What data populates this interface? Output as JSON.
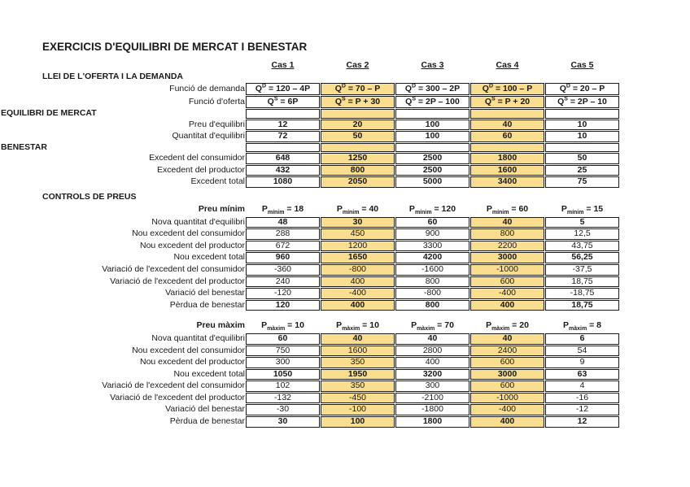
{
  "title": "EXERCICIS D'EQUILIBRI DE MERCAT I BENESTAR",
  "case_headers": [
    "Cas 1",
    "Cas 2",
    "Cas 3",
    "Cas 4",
    "Cas 5"
  ],
  "highlight_columns": [
    1,
    3
  ],
  "colors": {
    "highlight": "#F9DE8F",
    "border": "#1a1a1a",
    "text": "#1a1a1a"
  },
  "blocks": [
    {
      "kind": "case-header"
    },
    {
      "kind": "section-line",
      "text": "LLEI DE L'OFERTA I LA DEMANDA"
    },
    {
      "kind": "grid",
      "name": "market-table",
      "rows": [
        {
          "label": "Funció de demanda",
          "bold": true,
          "formula": true,
          "cells": [
            {
              "p": "Q",
              "sup": "D",
              "t": " = 120 – 4P"
            },
            {
              "p": "Q",
              "sup": "D",
              "t": " = 70 – P"
            },
            {
              "p": "Q",
              "sup": "D",
              "t": " = 300 – 2P"
            },
            {
              "p": "Q",
              "sup": "D",
              "t": " = 100 – P"
            },
            {
              "p": "Q",
              "sup": "D",
              "t": " = 20 – P"
            }
          ]
        },
        {
          "label": "Funció d'oferta",
          "bold": true,
          "formula": true,
          "cells": [
            {
              "p": "Q",
              "sup": "S",
              "t": " = 6P"
            },
            {
              "p": "Q",
              "sup": "S",
              "t": " = P + 30"
            },
            {
              "p": "Q",
              "sup": "S",
              "t": " = 2P – 100"
            },
            {
              "p": "Q",
              "sup": "S",
              "t": " = P + 20"
            },
            {
              "p": "Q",
              "sup": "S",
              "t": " = 2P – 10"
            }
          ]
        },
        {
          "sec": "EQUILIBRI DE MERCAT"
        },
        {
          "label": "Preu d'equilibri",
          "bold": true,
          "cells": [
            "12",
            "20",
            "100",
            "40",
            "10"
          ]
        },
        {
          "label": "Quantitat d'equilibri",
          "bold": true,
          "cells": [
            "72",
            "50",
            "100",
            "60",
            "10"
          ]
        },
        {
          "sec": "BENESTAR"
        },
        {
          "label": "Excedent del consumidor",
          "bold": true,
          "cells": [
            "648",
            "1250",
            "2500",
            "1800",
            "50"
          ]
        },
        {
          "label": "Excedent del productor",
          "bold": true,
          "cells": [
            "432",
            "800",
            "2500",
            "1600",
            "25"
          ]
        },
        {
          "label": "Excedent total",
          "bold": true,
          "cells": [
            "1080",
            "2050",
            "5000",
            "3400",
            "75"
          ]
        }
      ]
    },
    {
      "kind": "section-line",
      "text": "CONTROLS DE PREUS",
      "top_margin": true
    },
    {
      "kind": "price-line",
      "name": "price-floor-row",
      "label": "Preu mínim",
      "cells": [
        {
          "p": "P",
          "sub": "mínim",
          "t": " = 18"
        },
        {
          "p": "P",
          "sub": "mínim",
          "t": " = 40"
        },
        {
          "p": "P",
          "sub": "mínim",
          "t": " = 120"
        },
        {
          "p": "P",
          "sub": "mínim",
          "t": " = 60"
        },
        {
          "p": "P",
          "sub": "mínim",
          "t": " = 15"
        }
      ]
    },
    {
      "kind": "grid",
      "name": "price-floor-table",
      "rows": [
        {
          "label": "Nova quantitat d'equilibri",
          "bold": true,
          "cells": [
            "48",
            "30",
            "60",
            "40",
            "5"
          ]
        },
        {
          "label": "Nou excedent del consumidor",
          "cells": [
            "288",
            "450",
            "900",
            "800",
            "12,5"
          ]
        },
        {
          "label": "Nou excedent del productor",
          "cells": [
            "672",
            "1200",
            "3300",
            "2200",
            "43,75"
          ]
        },
        {
          "label": "Nou excedent total",
          "bold": true,
          "cells": [
            "960",
            "1650",
            "4200",
            "3000",
            "56,25"
          ]
        },
        {
          "label": "Variació de l'excedent del consumidor",
          "cells": [
            "-360",
            "-800",
            "-1600",
            "-1000",
            "-37,5"
          ]
        },
        {
          "label": "Variació de l'excedent del productor",
          "cells": [
            "240",
            "400",
            "800",
            "600",
            "18,75"
          ]
        },
        {
          "label": "Variació del benestar",
          "cells": [
            "-120",
            "-400",
            "-800",
            "-400",
            "-18,75"
          ]
        },
        {
          "label": "Pèrdua de benestar",
          "bold": true,
          "cells": [
            "120",
            "400",
            "800",
            "400",
            "18,75"
          ]
        }
      ]
    },
    {
      "kind": "gap"
    },
    {
      "kind": "price-line",
      "name": "price-ceiling-row",
      "label": "Preu màxim",
      "cells": [
        {
          "p": "P",
          "sub": "màxim",
          "t": " = 10"
        },
        {
          "p": "P",
          "sub": "màxim",
          "t": " = 10"
        },
        {
          "p": "P",
          "sub": "màxim",
          "t": " = 70"
        },
        {
          "p": "P",
          "sub": "màxim",
          "t": " = 20"
        },
        {
          "p": "P",
          "sub": "màxim",
          "t": " = 8"
        }
      ]
    },
    {
      "kind": "grid",
      "name": "price-ceiling-table",
      "rows": [
        {
          "label": "Nova quantitat d'equilibri",
          "bold": true,
          "cells": [
            "60",
            "40",
            "40",
            "40",
            "6"
          ]
        },
        {
          "label": "Nou excedent del consumidor",
          "cells": [
            "750",
            "1600",
            "2800",
            "2400",
            "54"
          ]
        },
        {
          "label": "Nou excedent del productor",
          "cells": [
            "300",
            "350",
            "400",
            "600",
            "9"
          ]
        },
        {
          "label": "Nou excedent total",
          "bold": true,
          "cells": [
            "1050",
            "1950",
            "3200",
            "3000",
            "63"
          ]
        },
        {
          "label": "Variació de l'excedent del consumidor",
          "cells": [
            "102",
            "350",
            "300",
            "600",
            "4"
          ]
        },
        {
          "label": "Variació de l'excedent del productor",
          "cells": [
            "-132",
            "-450",
            "-2100",
            "-1000",
            "-16"
          ]
        },
        {
          "label": "Variació del benestar",
          "cells": [
            "-30",
            "-100",
            "-1800",
            "-400",
            "-12"
          ]
        },
        {
          "label": "Pèrdua de benestar",
          "bold": true,
          "cells": [
            "30",
            "100",
            "1800",
            "400",
            "12"
          ]
        }
      ]
    }
  ]
}
